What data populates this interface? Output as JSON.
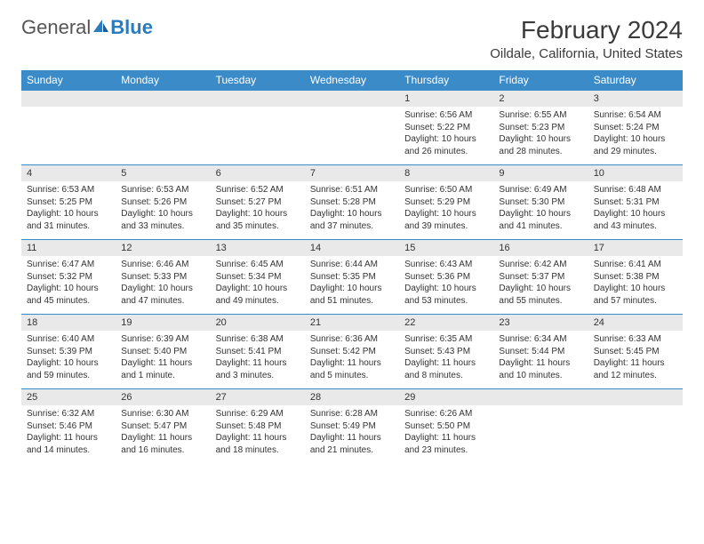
{
  "brand": {
    "part1": "General",
    "part2": "Blue"
  },
  "title": "February 2024",
  "location": "Oildale, California, United States",
  "colors": {
    "header_bg": "#3b8bc9",
    "header_fg": "#ffffff",
    "daynum_bg": "#e9e9e9",
    "border": "#3b8bc9",
    "text": "#333333",
    "page_bg": "#ffffff"
  },
  "typography": {
    "title_fontsize": 28,
    "location_fontsize": 15,
    "dayheader_fontsize": 12,
    "daynum_fontsize": 11,
    "detail_fontsize": 10
  },
  "day_headers": [
    "Sunday",
    "Monday",
    "Tuesday",
    "Wednesday",
    "Thursday",
    "Friday",
    "Saturday"
  ],
  "weeks": [
    [
      null,
      null,
      null,
      null,
      {
        "n": "1",
        "sunrise": "6:56 AM",
        "sunset": "5:22 PM",
        "daylight": "10 hours and 26 minutes."
      },
      {
        "n": "2",
        "sunrise": "6:55 AM",
        "sunset": "5:23 PM",
        "daylight": "10 hours and 28 minutes."
      },
      {
        "n": "3",
        "sunrise": "6:54 AM",
        "sunset": "5:24 PM",
        "daylight": "10 hours and 29 minutes."
      }
    ],
    [
      {
        "n": "4",
        "sunrise": "6:53 AM",
        "sunset": "5:25 PM",
        "daylight": "10 hours and 31 minutes."
      },
      {
        "n": "5",
        "sunrise": "6:53 AM",
        "sunset": "5:26 PM",
        "daylight": "10 hours and 33 minutes."
      },
      {
        "n": "6",
        "sunrise": "6:52 AM",
        "sunset": "5:27 PM",
        "daylight": "10 hours and 35 minutes."
      },
      {
        "n": "7",
        "sunrise": "6:51 AM",
        "sunset": "5:28 PM",
        "daylight": "10 hours and 37 minutes."
      },
      {
        "n": "8",
        "sunrise": "6:50 AM",
        "sunset": "5:29 PM",
        "daylight": "10 hours and 39 minutes."
      },
      {
        "n": "9",
        "sunrise": "6:49 AM",
        "sunset": "5:30 PM",
        "daylight": "10 hours and 41 minutes."
      },
      {
        "n": "10",
        "sunrise": "6:48 AM",
        "sunset": "5:31 PM",
        "daylight": "10 hours and 43 minutes."
      }
    ],
    [
      {
        "n": "11",
        "sunrise": "6:47 AM",
        "sunset": "5:32 PM",
        "daylight": "10 hours and 45 minutes."
      },
      {
        "n": "12",
        "sunrise": "6:46 AM",
        "sunset": "5:33 PM",
        "daylight": "10 hours and 47 minutes."
      },
      {
        "n": "13",
        "sunrise": "6:45 AM",
        "sunset": "5:34 PM",
        "daylight": "10 hours and 49 minutes."
      },
      {
        "n": "14",
        "sunrise": "6:44 AM",
        "sunset": "5:35 PM",
        "daylight": "10 hours and 51 minutes."
      },
      {
        "n": "15",
        "sunrise": "6:43 AM",
        "sunset": "5:36 PM",
        "daylight": "10 hours and 53 minutes."
      },
      {
        "n": "16",
        "sunrise": "6:42 AM",
        "sunset": "5:37 PM",
        "daylight": "10 hours and 55 minutes."
      },
      {
        "n": "17",
        "sunrise": "6:41 AM",
        "sunset": "5:38 PM",
        "daylight": "10 hours and 57 minutes."
      }
    ],
    [
      {
        "n": "18",
        "sunrise": "6:40 AM",
        "sunset": "5:39 PM",
        "daylight": "10 hours and 59 minutes."
      },
      {
        "n": "19",
        "sunrise": "6:39 AM",
        "sunset": "5:40 PM",
        "daylight": "11 hours and 1 minute."
      },
      {
        "n": "20",
        "sunrise": "6:38 AM",
        "sunset": "5:41 PM",
        "daylight": "11 hours and 3 minutes."
      },
      {
        "n": "21",
        "sunrise": "6:36 AM",
        "sunset": "5:42 PM",
        "daylight": "11 hours and 5 minutes."
      },
      {
        "n": "22",
        "sunrise": "6:35 AM",
        "sunset": "5:43 PM",
        "daylight": "11 hours and 8 minutes."
      },
      {
        "n": "23",
        "sunrise": "6:34 AM",
        "sunset": "5:44 PM",
        "daylight": "11 hours and 10 minutes."
      },
      {
        "n": "24",
        "sunrise": "6:33 AM",
        "sunset": "5:45 PM",
        "daylight": "11 hours and 12 minutes."
      }
    ],
    [
      {
        "n": "25",
        "sunrise": "6:32 AM",
        "sunset": "5:46 PM",
        "daylight": "11 hours and 14 minutes."
      },
      {
        "n": "26",
        "sunrise": "6:30 AM",
        "sunset": "5:47 PM",
        "daylight": "11 hours and 16 minutes."
      },
      {
        "n": "27",
        "sunrise": "6:29 AM",
        "sunset": "5:48 PM",
        "daylight": "11 hours and 18 minutes."
      },
      {
        "n": "28",
        "sunrise": "6:28 AM",
        "sunset": "5:49 PM",
        "daylight": "11 hours and 21 minutes."
      },
      {
        "n": "29",
        "sunrise": "6:26 AM",
        "sunset": "5:50 PM",
        "daylight": "11 hours and 23 minutes."
      },
      null,
      null
    ]
  ]
}
